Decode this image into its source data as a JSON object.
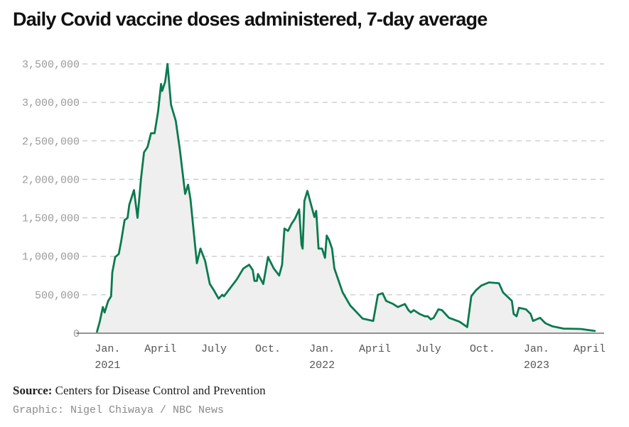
{
  "title": "Daily Covid vaccine doses administered, 7-day average",
  "source_label": "Source:",
  "source_text": "Centers for Disease Control and Prevention",
  "credit": "Graphic: Nigel Chiwaya / NBC News",
  "colors": {
    "line": "#0b7a4f",
    "area": "#efefef",
    "grid": "#c8c8c8",
    "axis": "#555555"
  },
  "chart_data": {
    "type": "area",
    "title": "Daily Covid vaccine doses administered, 7-day average",
    "xlabel": "",
    "ylabel": "",
    "ylim": [
      0,
      3500000
    ],
    "xlim": [
      "2020-11-12",
      "2023-04-26"
    ],
    "grid": "horizontal dashed",
    "yticks": [
      {
        "value": 0,
        "label": "0"
      },
      {
        "value": 500000,
        "label": "500,000"
      },
      {
        "value": 1000000,
        "label": "1,000,000"
      },
      {
        "value": 1500000,
        "label": "1,500,000"
      },
      {
        "value": 2000000,
        "label": "2,000,000"
      },
      {
        "value": 2500000,
        "label": "2,500,000"
      },
      {
        "value": 3000000,
        "label": "3,000,000"
      },
      {
        "value": 3500000,
        "label": "3,500,000"
      }
    ],
    "xticks": [
      {
        "date": "2021-01-01",
        "label": "Jan.",
        "year": "2021"
      },
      {
        "date": "2021-04-01",
        "label": "April",
        "year": ""
      },
      {
        "date": "2021-07-01",
        "label": "July",
        "year": ""
      },
      {
        "date": "2021-10-01",
        "label": "Oct.",
        "year": ""
      },
      {
        "date": "2022-01-01",
        "label": "Jan.",
        "year": "2022"
      },
      {
        "date": "2022-04-01",
        "label": "April",
        "year": ""
      },
      {
        "date": "2022-07-01",
        "label": "July",
        "year": ""
      },
      {
        "date": "2022-10-01",
        "label": "Oct.",
        "year": ""
      },
      {
        "date": "2023-01-01",
        "label": "Jan.",
        "year": "2023"
      },
      {
        "date": "2023-04-01",
        "label": "April",
        "year": ""
      }
    ],
    "series": [
      {
        "x": [
          "2020-12-14",
          "2020-12-19",
          "2020-12-24",
          "2020-12-27",
          "2021-01-02",
          "2021-01-07",
          "2021-01-09",
          "2021-01-14",
          "2021-01-20",
          "2021-01-24",
          "2021-01-30",
          "2021-02-04",
          "2021-02-07",
          "2021-02-15",
          "2021-02-21",
          "2021-02-27",
          "2021-03-04",
          "2021-03-10",
          "2021-03-16",
          "2021-03-22",
          "2021-03-28",
          "2021-04-02",
          "2021-04-04",
          "2021-04-09",
          "2021-04-13",
          "2021-04-19",
          "2021-04-27",
          "2021-05-04",
          "2021-05-13",
          "2021-05-18",
          "2021-05-22",
          "2021-06-02",
          "2021-06-08",
          "2021-06-16",
          "2021-06-24",
          "2021-06-30",
          "2021-07-09",
          "2021-07-15",
          "2021-07-18",
          "2021-08-09",
          "2021-08-20",
          "2021-08-30",
          "2021-09-05",
          "2021-09-08",
          "2021-09-12",
          "2021-09-14",
          "2021-09-23",
          "2021-10-01",
          "2021-10-11",
          "2021-10-20",
          "2021-10-25",
          "2021-10-29",
          "2021-11-04",
          "2021-11-10",
          "2021-11-16",
          "2021-11-23",
          "2021-11-27",
          "2021-11-29",
          "2021-12-02",
          "2021-12-07",
          "2021-12-13",
          "2021-12-19",
          "2021-12-22",
          "2021-12-26",
          "2022-01-01",
          "2022-01-06",
          "2022-01-09",
          "2022-01-13",
          "2022-01-18",
          "2022-01-22",
          "2022-02-05",
          "2022-02-18",
          "2022-03-11",
          "2022-03-29",
          "2022-04-06",
          "2022-04-14",
          "2022-04-20",
          "2022-05-02",
          "2022-05-10",
          "2022-05-22",
          "2022-05-28",
          "2022-06-01",
          "2022-06-06",
          "2022-06-16",
          "2022-06-25",
          "2022-06-30",
          "2022-07-05",
          "2022-07-10",
          "2022-07-18",
          "2022-07-24",
          "2022-08-05",
          "2022-08-23",
          "2022-09-05",
          "2022-09-12",
          "2022-09-20",
          "2022-09-29",
          "2022-10-12",
          "2022-10-29",
          "2022-11-05",
          "2022-11-20",
          "2022-11-23",
          "2022-11-28",
          "2022-12-02",
          "2022-12-14",
          "2022-12-22",
          "2022-12-26",
          "2023-01-01",
          "2023-01-07",
          "2023-01-16",
          "2023-01-28",
          "2023-02-16",
          "2023-03-17",
          "2023-04-10"
        ],
        "values": [
          20000,
          160000,
          340000,
          270000,
          420000,
          480000,
          790000,
          990000,
          1030000,
          1190000,
          1470000,
          1500000,
          1670000,
          1860000,
          1500000,
          2020000,
          2350000,
          2420000,
          2600000,
          2600000,
          2880000,
          3240000,
          3150000,
          3270000,
          3500000,
          2970000,
          2760000,
          2390000,
          1810000,
          1930000,
          1750000,
          910000,
          1100000,
          940000,
          640000,
          570000,
          450000,
          500000,
          480000,
          700000,
          840000,
          890000,
          820000,
          680000,
          680000,
          770000,
          640000,
          990000,
          840000,
          750000,
          890000,
          1360000,
          1330000,
          1420000,
          1490000,
          1610000,
          1150000,
          1100000,
          1720000,
          1850000,
          1680000,
          1510000,
          1590000,
          1100000,
          1100000,
          980000,
          1270000,
          1210000,
          1100000,
          840000,
          530000,
          360000,
          190000,
          160000,
          500000,
          520000,
          420000,
          380000,
          340000,
          380000,
          300000,
          270000,
          300000,
          250000,
          220000,
          220000,
          180000,
          200000,
          310000,
          300000,
          200000,
          150000,
          80000,
          480000,
          560000,
          620000,
          660000,
          650000,
          530000,
          420000,
          250000,
          220000,
          330000,
          310000,
          250000,
          160000,
          180000,
          200000,
          130000,
          90000,
          60000,
          55000,
          30000
        ]
      }
    ]
  }
}
